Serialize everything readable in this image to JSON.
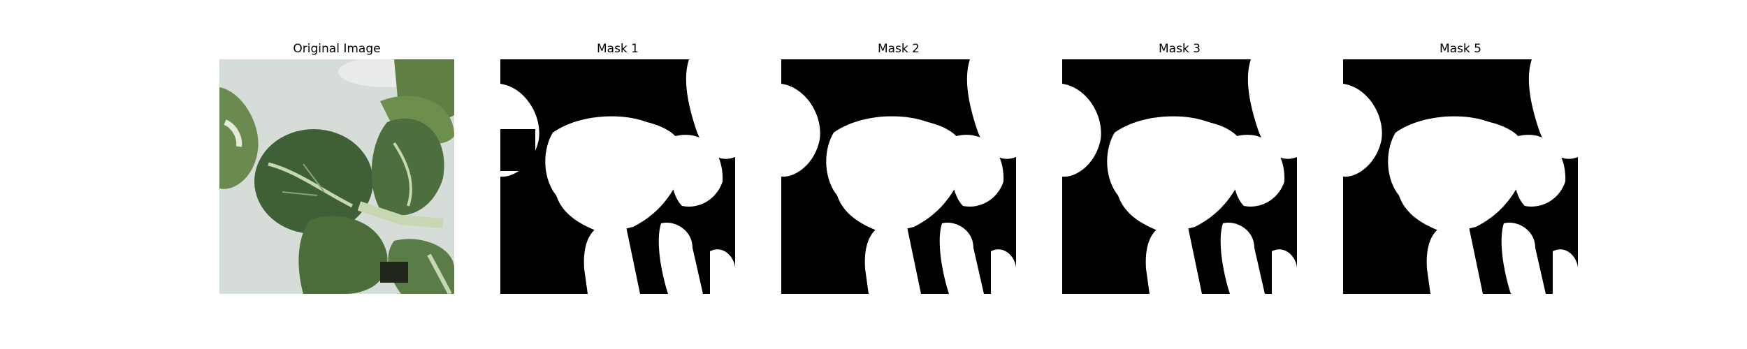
{
  "figure": {
    "panels": [
      {
        "title": "Original Image",
        "kind": "photo"
      },
      {
        "title": "Mask 1",
        "kind": "mask"
      },
      {
        "title": "Mask 2",
        "kind": "mask"
      },
      {
        "title": "Mask 3",
        "kind": "mask"
      },
      {
        "title": "Mask 5",
        "kind": "mask"
      }
    ]
  },
  "colors": {
    "background": "#ffffff",
    "mask_foreground": "#ffffff",
    "mask_background": "#000000",
    "photo_backdrop": "#d6dcd8",
    "leaf_dark": "#3f5f36",
    "leaf_mid": "#577a45",
    "stem": "#c7d6b3"
  }
}
